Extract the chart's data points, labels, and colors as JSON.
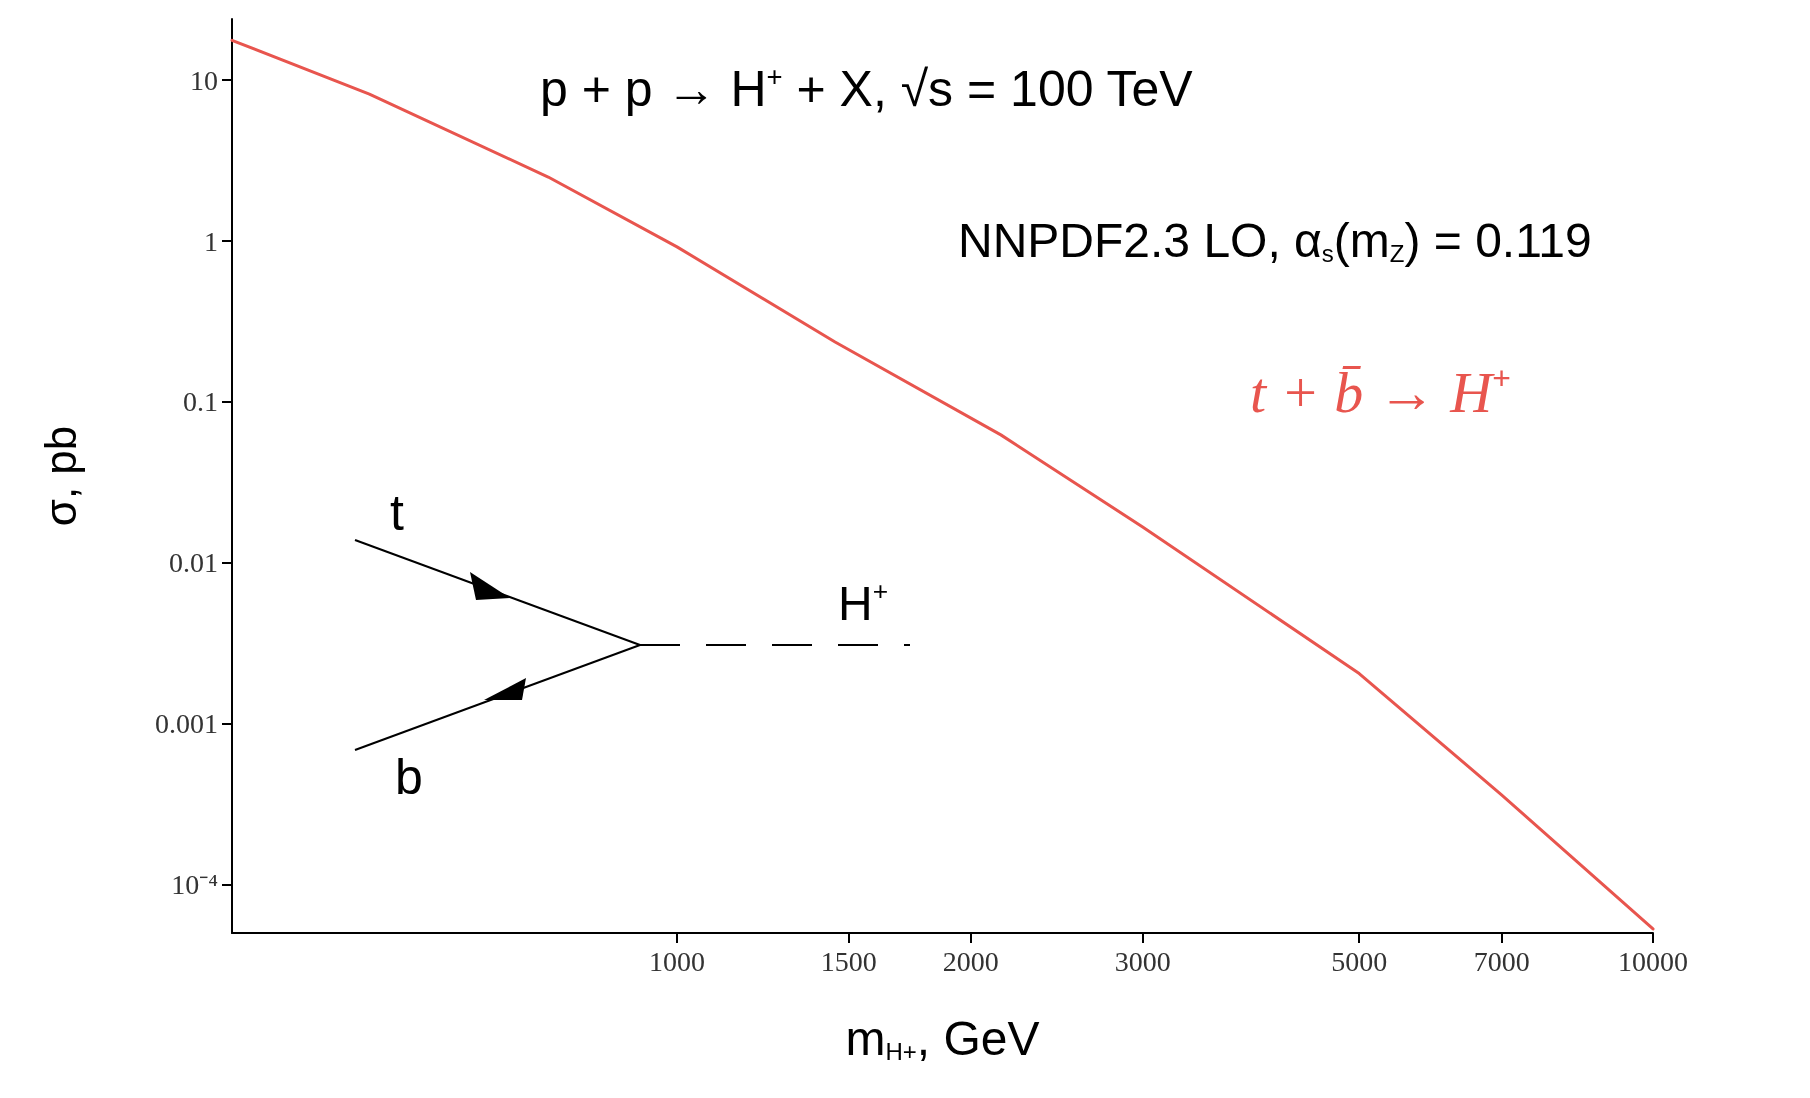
{
  "chart_data": {
    "type": "line",
    "xlabel": "m$_{H+}$, GeV",
    "ylabel": "σ, pb",
    "annotations": [
      "p + p → H$^{+}$ + X, √s = 100 TeV",
      "NNPDF2.3 LO, α$_{s}$(m$_{Z}$) = 0.119",
      "t",
      "b",
      "H$^{+}$"
    ],
    "log": "xy",
    "marker": "none",
    "line_style": "solid",
    "xlim": [
      350,
      10000
    ],
    "xticks": [
      1000,
      1500,
      2000,
      3000,
      5000,
      7000,
      10000
    ],
    "ylim": [
      5e-05,
      24
    ],
    "yticks": [
      {
        "value": 0.0001,
        "label": "10⁻⁴"
      },
      0.001,
      0.01,
      0.1,
      1,
      10
    ],
    "series": [
      {
        "name": "t + b̄ → H$^{+}$",
        "color": "#e8554e",
        "x": [
          350,
          484,
          738,
          1000,
          1452,
          2147,
          3000,
          5000,
          7000,
          10000
        ],
        "values": [
          17.7,
          8.2,
          2.5,
          0.92,
          0.236,
          0.0624,
          0.0167,
          0.00205,
          0.00036,
          5.3e-05
        ]
      }
    ]
  }
}
